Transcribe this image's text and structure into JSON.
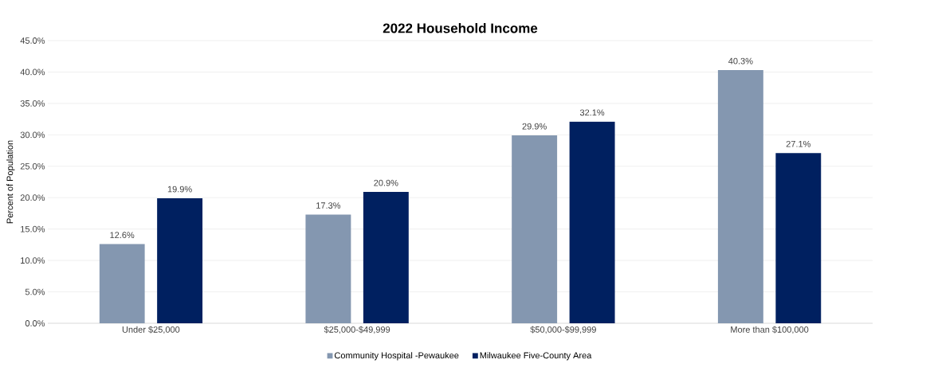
{
  "chart_data": {
    "type": "bar",
    "title": "2022 Household Income",
    "ylabel": "Percent of Population",
    "categories": [
      "Under $25,000",
      "$25,000-$49,999",
      "$50,000-$99,999",
      "More than $100,000"
    ],
    "series": [
      {
        "name": "Community Hospital -Pewaukee",
        "color": "#8497b0",
        "values": [
          12.6,
          17.3,
          29.9,
          40.3
        ],
        "value_labels": [
          "12.6%",
          "17.3%",
          "29.9%",
          "40.3%"
        ]
      },
      {
        "name": "Milwaukee Five-County Area",
        "color": "#002060",
        "values": [
          19.9,
          20.9,
          32.1,
          27.1
        ],
        "value_labels": [
          "19.9%",
          "20.9%",
          "32.1%",
          "27.1%"
        ]
      }
    ],
    "ylim": [
      0,
      45
    ],
    "yticks": [
      {
        "value": 0,
        "label": "0.0%"
      },
      {
        "value": 5,
        "label": "5.0%"
      },
      {
        "value": 10,
        "label": "10.0%"
      },
      {
        "value": 15,
        "label": "15.0%"
      },
      {
        "value": 20,
        "label": "20.0%"
      },
      {
        "value": 25,
        "label": "25.0%"
      },
      {
        "value": 30,
        "label": "30.0%"
      },
      {
        "value": 35,
        "label": "35.0%"
      },
      {
        "value": 40,
        "label": "40.0%"
      },
      {
        "value": 45,
        "label": "45.0%"
      }
    ],
    "grid": "y",
    "legend": "bottom"
  }
}
